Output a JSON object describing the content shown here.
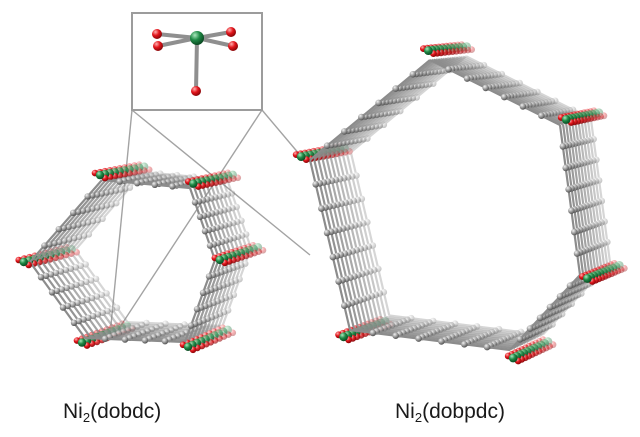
{
  "figure": {
    "frameworks": [
      {
        "id": "small",
        "label_main": "Ni",
        "label_sub": "2",
        "label_tail": "(dobdc)"
      },
      {
        "id": "large",
        "label_main": "Ni",
        "label_sub": "2",
        "label_tail": "(dobpdc)"
      }
    ],
    "inset": {
      "content": "Ni coordination: one green Ni atom bonded to five red O atoms"
    },
    "colors": {
      "carbon": "#8e8e8e",
      "carbon_light": "#cfcfcf",
      "oxygen": "#e0161c",
      "nickel": "#1f8a46",
      "bond": "#9a9a9a",
      "callout": "#9c9c9c"
    }
  }
}
